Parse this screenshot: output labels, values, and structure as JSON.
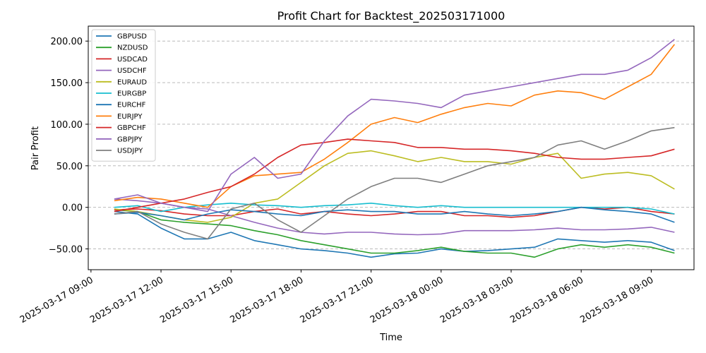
{
  "chart_data": {
    "type": "line",
    "title": "Profit Chart for Backtest_202503171000",
    "xlabel": "Time",
    "ylabel": "Pair Profit",
    "xlim": [
      "2025-03-17 08:53",
      "2025-03-18 10:50"
    ],
    "ylim": [
      -75,
      218
    ],
    "x_ticks": [
      {
        "t": "2025-03-17 09:00",
        "label": "2025-03-17 09:00"
      },
      {
        "t": "2025-03-17 12:00",
        "label": "2025-03-17 12:00"
      },
      {
        "t": "2025-03-17 15:00",
        "label": "2025-03-17 15:00"
      },
      {
        "t": "2025-03-17 18:00",
        "label": "2025-03-17 18:00"
      },
      {
        "t": "2025-03-17 21:00",
        "label": "2025-03-17 21:00"
      },
      {
        "t": "2025-03-18 00:00",
        "label": "2025-03-18 00:00"
      },
      {
        "t": "2025-03-18 03:00",
        "label": "2025-03-18 03:00"
      },
      {
        "t": "2025-03-18 06:00",
        "label": "2025-03-18 06:00"
      },
      {
        "t": "2025-03-18 09:00",
        "label": "2025-03-18 09:00"
      }
    ],
    "y_ticks": [
      {
        "v": -50,
        "label": "−50.00"
      },
      {
        "v": 0,
        "label": "0.00"
      },
      {
        "v": 50,
        "label": "50.00"
      },
      {
        "v": 100,
        "label": "100.00"
      },
      {
        "v": 150,
        "label": "150.00"
      },
      {
        "v": 200,
        "label": "200.00"
      }
    ],
    "grid": "horizontal-dashed",
    "legend_position": "top-left",
    "x": [
      "2025-03-17 10:00",
      "2025-03-17 11:00",
      "2025-03-17 12:00",
      "2025-03-17 13:00",
      "2025-03-17 14:00",
      "2025-03-17 15:00",
      "2025-03-17 16:00",
      "2025-03-17 17:00",
      "2025-03-17 18:00",
      "2025-03-17 19:00",
      "2025-03-17 20:00",
      "2025-03-17 21:00",
      "2025-03-17 22:00",
      "2025-03-17 23:00",
      "2025-03-18 00:00",
      "2025-03-18 01:00",
      "2025-03-18 02:00",
      "2025-03-18 03:00",
      "2025-03-18 04:00",
      "2025-03-18 05:00",
      "2025-03-18 06:00",
      "2025-03-18 07:00",
      "2025-03-18 08:00",
      "2025-03-18 09:00",
      "2025-03-18 10:00"
    ],
    "series": [
      {
        "name": "GBPUSD",
        "color": "#1f77b4",
        "values": [
          -5,
          -8,
          -25,
          -38,
          -38,
          -30,
          -40,
          -45,
          -50,
          -52,
          -55,
          -60,
          -56,
          -55,
          -50,
          -53,
          -52,
          -50,
          -48,
          -38,
          -40,
          -42,
          -40,
          -42,
          -52
        ]
      },
      {
        "name": "NZDUSD",
        "color": "#2ca02c",
        "values": [
          -3,
          -5,
          -15,
          -18,
          -20,
          -22,
          -28,
          -33,
          -40,
          -45,
          -50,
          -55,
          -55,
          -52,
          -48,
          -53,
          -55,
          -55,
          -60,
          -50,
          -45,
          -48,
          -45,
          -48,
          -55
        ]
      },
      {
        "name": "USDCAD",
        "color": "#d62728",
        "values": [
          -3,
          -2,
          -4,
          -8,
          -10,
          -10,
          -5,
          -2,
          -8,
          -5,
          -8,
          -10,
          -8,
          -5,
          -5,
          -10,
          -10,
          -12,
          -10,
          -5,
          0,
          -2,
          0,
          -5,
          -8
        ]
      },
      {
        "name": "USDCHF",
        "color": "#9467bd",
        "values": [
          10,
          8,
          5,
          0,
          -2,
          -10,
          -18,
          -25,
          -30,
          -32,
          -30,
          -30,
          -32,
          -33,
          -32,
          -28,
          -28,
          -28,
          -27,
          -25,
          -27,
          -27,
          -26,
          -24,
          -30
        ]
      },
      {
        "name": "EURAUD",
        "color": "#bcbd22",
        "values": [
          -2,
          -5,
          -10,
          -15,
          -18,
          -12,
          5,
          10,
          30,
          50,
          65,
          68,
          62,
          55,
          60,
          55,
          55,
          52,
          60,
          65,
          35,
          40,
          42,
          38,
          22
        ]
      },
      {
        "name": "EURGBP",
        "color": "#17becf",
        "values": [
          0,
          2,
          -5,
          0,
          3,
          5,
          3,
          2,
          0,
          2,
          3,
          5,
          2,
          0,
          2,
          0,
          0,
          0,
          0,
          0,
          0,
          0,
          0,
          -2,
          -8
        ]
      },
      {
        "name": "EURCHF",
        "color": "#1f77b4",
        "values": [
          -8,
          -6,
          -10,
          -15,
          -8,
          -3,
          -5,
          -8,
          -10,
          -5,
          -3,
          -5,
          -5,
          -8,
          -8,
          -5,
          -8,
          -10,
          -8,
          -5,
          0,
          -3,
          -5,
          -8,
          -18
        ]
      },
      {
        "name": "EURJPY",
        "color": "#ff7f0e",
        "values": [
          8,
          12,
          10,
          5,
          0,
          25,
          38,
          40,
          42,
          58,
          78,
          100,
          108,
          102,
          112,
          120,
          125,
          122,
          135,
          140,
          138,
          130,
          145,
          160,
          196
        ]
      },
      {
        "name": "GBPCHF",
        "color": "#d62728",
        "values": [
          -5,
          0,
          5,
          10,
          18,
          25,
          40,
          60,
          75,
          78,
          82,
          80,
          78,
          72,
          72,
          70,
          70,
          68,
          65,
          60,
          58,
          58,
          60,
          62,
          70
        ]
      },
      {
        "name": "GBPJPY",
        "color": "#9467bd",
        "values": [
          10,
          15,
          5,
          0,
          -5,
          40,
          60,
          35,
          40,
          80,
          110,
          130,
          128,
          125,
          120,
          135,
          140,
          145,
          150,
          155,
          160,
          160,
          165,
          180,
          202
        ]
      },
      {
        "name": "USDJPY",
        "color": "#7f7f7f",
        "values": [
          -8,
          -5,
          -20,
          -30,
          -38,
          -2,
          5,
          -15,
          -30,
          -10,
          10,
          25,
          35,
          35,
          30,
          40,
          50,
          55,
          60,
          75,
          80,
          70,
          80,
          92,
          96
        ]
      }
    ]
  }
}
